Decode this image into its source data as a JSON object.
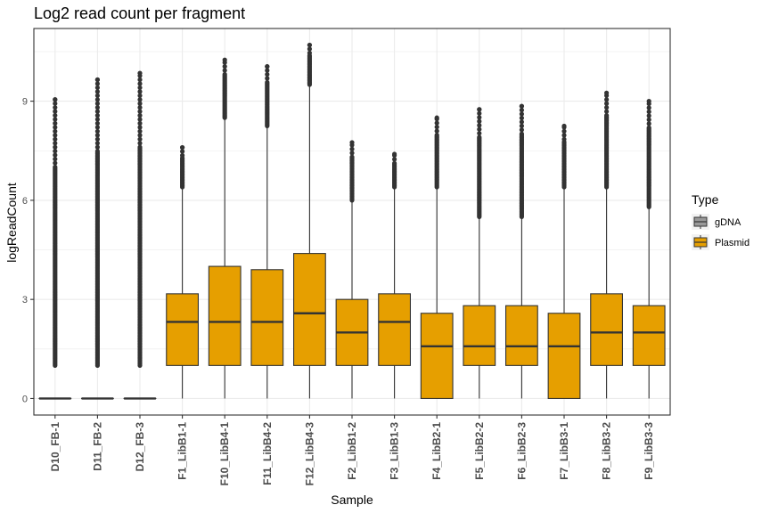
{
  "chart_data": {
    "type": "boxplot",
    "title": "Log2 read count per fragment",
    "xlabel": "Sample",
    "ylabel": "logReadCount",
    "ylim": [
      -0.5,
      11.2
    ],
    "yticks": [
      0,
      3,
      6,
      9
    ],
    "grid": true,
    "legend": {
      "title": "Type",
      "position": "right",
      "entries": [
        "gDNA",
        "Plasmid"
      ]
    },
    "colors": {
      "gDNA": "#999999",
      "Plasmid": "#e69f00",
      "stroke": "#333333",
      "panel_border": "#333333",
      "grid": "#ebebeb"
    },
    "categories": [
      "D10_FB-1",
      "D11_FB-2",
      "D12_FB-3",
      "F1_LibB1-1",
      "F10_LibB4-1",
      "F11_LibB4-2",
      "F12_LibB4-3",
      "F2_LibB1-2",
      "F3_LibB1-3",
      "F4_LibB2-1",
      "F5_LibB2-2",
      "F6_LibB2-3",
      "F7_LibB3-1",
      "F8_LibB3-2",
      "F9_LibB3-3"
    ],
    "boxes": [
      {
        "sample": "D10_FB-1",
        "type": "Plasmid",
        "q1": 0,
        "median": 0,
        "q3": 0,
        "whisker_low": 0,
        "whisker_high": 0,
        "outlier_min": 1.0,
        "outlier_max": 9.05
      },
      {
        "sample": "D11_FB-2",
        "type": "Plasmid",
        "q1": 0,
        "median": 0,
        "q3": 0,
        "whisker_low": 0,
        "whisker_high": 0,
        "outlier_min": 1.0,
        "outlier_max": 9.65
      },
      {
        "sample": "D12_FB-3",
        "type": "Plasmid",
        "q1": 0,
        "median": 0,
        "q3": 0,
        "whisker_low": 0,
        "whisker_high": 0,
        "outlier_min": 1.0,
        "outlier_max": 9.85
      },
      {
        "sample": "F1_LibB1-1",
        "type": "Plasmid",
        "q1": 1.0,
        "median": 2.32,
        "q3": 3.17,
        "whisker_low": 0,
        "whisker_high": 6.4,
        "outlier_min": 6.4,
        "outlier_max": 7.6
      },
      {
        "sample": "F10_LibB4-1",
        "type": "Plasmid",
        "q1": 1.0,
        "median": 2.32,
        "q3": 4.0,
        "whisker_low": 0,
        "whisker_high": 8.5,
        "outlier_min": 8.5,
        "outlier_max": 10.25
      },
      {
        "sample": "F11_LibB4-2",
        "type": "Plasmid",
        "q1": 1.0,
        "median": 2.32,
        "q3": 3.9,
        "whisker_low": 0,
        "whisker_high": 8.25,
        "outlier_min": 8.25,
        "outlier_max": 10.05
      },
      {
        "sample": "F12_LibB4-3",
        "type": "Plasmid",
        "q1": 1.0,
        "median": 2.58,
        "q3": 4.39,
        "whisker_low": 0,
        "whisker_high": 9.5,
        "outlier_min": 9.5,
        "outlier_max": 10.7
      },
      {
        "sample": "F2_LibB1-2",
        "type": "Plasmid",
        "q1": 1.0,
        "median": 2.0,
        "q3": 3.0,
        "whisker_low": 0,
        "whisker_high": 6.0,
        "outlier_min": 6.0,
        "outlier_max": 7.75
      },
      {
        "sample": "F3_LibB1-3",
        "type": "Plasmid",
        "q1": 1.0,
        "median": 2.32,
        "q3": 3.17,
        "whisker_low": 0,
        "whisker_high": 6.4,
        "outlier_min": 6.4,
        "outlier_max": 7.4
      },
      {
        "sample": "F4_LibB2-1",
        "type": "Plasmid",
        "q1": 0,
        "median": 1.58,
        "q3": 2.58,
        "whisker_low": 0,
        "whisker_high": 6.4,
        "outlier_min": 6.4,
        "outlier_max": 8.5
      },
      {
        "sample": "F5_LibB2-2",
        "type": "Plasmid",
        "q1": 1.0,
        "median": 1.58,
        "q3": 2.81,
        "whisker_low": 0,
        "whisker_high": 5.5,
        "outlier_min": 5.5,
        "outlier_max": 8.75
      },
      {
        "sample": "F6_LibB2-3",
        "type": "Plasmid",
        "q1": 1.0,
        "median": 1.58,
        "q3": 2.81,
        "whisker_low": 0,
        "whisker_high": 5.5,
        "outlier_min": 5.5,
        "outlier_max": 8.85
      },
      {
        "sample": "F7_LibB3-1",
        "type": "Plasmid",
        "q1": 0,
        "median": 1.58,
        "q3": 2.58,
        "whisker_low": 0,
        "whisker_high": 6.4,
        "outlier_min": 6.4,
        "outlier_max": 8.25
      },
      {
        "sample": "F8_LibB3-2",
        "type": "Plasmid",
        "q1": 1.0,
        "median": 2.0,
        "q3": 3.17,
        "whisker_low": 0,
        "whisker_high": 6.4,
        "outlier_min": 6.4,
        "outlier_max": 9.25
      },
      {
        "sample": "F9_LibB3-3",
        "type": "Plasmid",
        "q1": 1.0,
        "median": 2.0,
        "q3": 2.81,
        "whisker_low": 0,
        "whisker_high": 5.8,
        "outlier_min": 5.8,
        "outlier_max": 9.0
      }
    ]
  }
}
